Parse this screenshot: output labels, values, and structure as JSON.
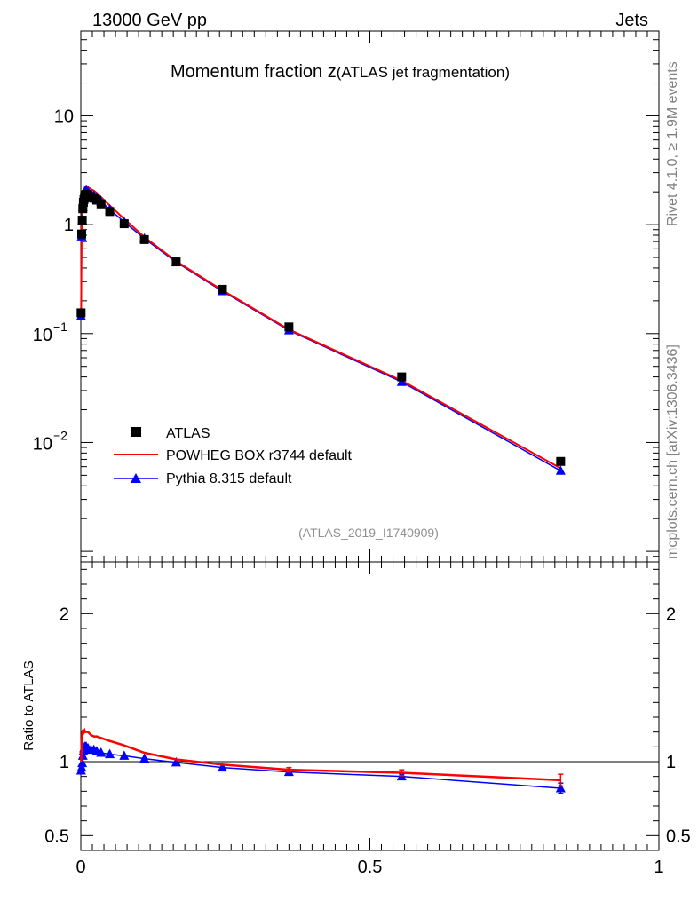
{
  "header": {
    "beam_label": "13000 GeV pp",
    "process_label": "Jets"
  },
  "side_labels": {
    "rivet": "Rivet 4.1.0, ≥ 1.9M events",
    "mcplots": "mcplots.cern.ch [arXiv:1306.3436]"
  },
  "analysis_id": "(ATLAS_2019_I1740909)",
  "colors": {
    "data": "#000000",
    "powheg": "#ff0000",
    "pythia": "#0000ff",
    "axes": "#000000",
    "grey_text": "#808080"
  },
  "chart_data": [
    {
      "type": "scatter",
      "panel": "main",
      "title_main": "Momentum fraction z",
      "title_sub": "(ATLAS jet fragmentation)",
      "yscale": "log",
      "xlim": [
        0,
        1
      ],
      "ylim": [
        0.0008,
        60
      ],
      "y_ticks": [
        {
          "value": 0.01,
          "base": "10",
          "exp": "−2"
        },
        {
          "value": 0.1,
          "base": "10",
          "exp": "−1"
        },
        {
          "value": 1,
          "label": "1"
        },
        {
          "value": 10,
          "label": "10"
        }
      ],
      "legend_position": "lower-left",
      "series": [
        {
          "name": "ATLAS",
          "kind": "data",
          "x": [
            0.0005,
            0.0015,
            0.0025,
            0.0035,
            0.0045,
            0.0055,
            0.0065,
            0.0075,
            0.0085,
            0.0095,
            0.0125,
            0.0175,
            0.0225,
            0.0275,
            0.035,
            0.05,
            0.075,
            0.11,
            0.165,
            0.245,
            0.36,
            0.555,
            0.83
          ],
          "y": [
            0.155,
            0.82,
            1.1,
            1.4,
            1.6,
            1.7,
            1.8,
            1.85,
            1.88,
            1.9,
            1.85,
            1.8,
            1.75,
            1.68,
            1.55,
            1.32,
            1.02,
            0.73,
            0.455,
            0.255,
            0.115,
            0.04,
            0.0067
          ]
        },
        {
          "name": "POWHEG BOX r3744 default",
          "kind": "line",
          "x": [
            0.0005,
            0.0015,
            0.0025,
            0.0035,
            0.0045,
            0.0055,
            0.0065,
            0.0075,
            0.0085,
            0.0095,
            0.0125,
            0.0175,
            0.0225,
            0.0275,
            0.035,
            0.05,
            0.075,
            0.11,
            0.165,
            0.245,
            0.36,
            0.555,
            0.83
          ],
          "y": [
            0.155,
            0.93,
            1.33,
            1.69,
            1.93,
            2.05,
            2.17,
            2.23,
            2.26,
            2.28,
            2.21,
            2.12,
            2.05,
            1.96,
            1.79,
            1.5,
            1.13,
            0.77,
            0.462,
            0.25,
            0.109,
            0.037,
            0.0058
          ]
        },
        {
          "name": "Pythia 8.315 default",
          "kind": "line",
          "x": [
            0.0005,
            0.0015,
            0.0025,
            0.0035,
            0.0045,
            0.0055,
            0.0065,
            0.0075,
            0.0085,
            0.0095,
            0.0125,
            0.0175,
            0.0225,
            0.0275,
            0.035,
            0.05,
            0.075,
            0.11,
            0.165,
            0.245,
            0.36,
            0.555,
            0.83
          ],
          "y": [
            0.145,
            0.78,
            1.1,
            1.45,
            1.7,
            1.85,
            1.97,
            2.03,
            2.06,
            2.07,
            2.0,
            1.92,
            1.86,
            1.78,
            1.63,
            1.38,
            1.06,
            0.745,
            0.452,
            0.245,
            0.107,
            0.036,
            0.0055
          ]
        }
      ]
    },
    {
      "type": "line",
      "panel": "ratio",
      "ylabel": "Ratio to ATLAS",
      "xlim": [
        0,
        1
      ],
      "ylim": [
        0.4,
        2.35
      ],
      "y_ticks": [
        {
          "value": 0.5,
          "label": "0.5"
        },
        {
          "value": 1,
          "label": "1"
        },
        {
          "value": 2,
          "label": "2"
        }
      ],
      "x_ticks": [
        {
          "value": 0,
          "label": "0"
        },
        {
          "value": 0.5,
          "label": "0.5"
        },
        {
          "value": 1,
          "label": "1"
        }
      ],
      "reference_line": 1,
      "series": [
        {
          "name": "POWHEG BOX r3744 default",
          "x": [
            0.0005,
            0.0015,
            0.0025,
            0.0035,
            0.0045,
            0.0055,
            0.0065,
            0.0075,
            0.0085,
            0.0095,
            0.0125,
            0.0175,
            0.0225,
            0.0275,
            0.035,
            0.05,
            0.075,
            0.11,
            0.165,
            0.245,
            0.36,
            0.555,
            0.83
          ],
          "y": [
            1.0,
            1.13,
            1.2,
            1.21,
            1.21,
            1.2,
            1.21,
            1.2,
            1.2,
            1.2,
            1.2,
            1.18,
            1.17,
            1.17,
            1.16,
            1.14,
            1.11,
            1.06,
            1.015,
            0.98,
            0.945,
            0.925,
            0.875
          ],
          "yerr": [
            0.01,
            0.01,
            0.01,
            0.01,
            0.01,
            0.01,
            0.01,
            0.01,
            0.01,
            0.01,
            0.01,
            0.01,
            0.01,
            0.01,
            0.01,
            0.01,
            0.01,
            0.01,
            0.01,
            0.01,
            0.015,
            0.02,
            0.04
          ]
        },
        {
          "name": "Pythia 8.315 default",
          "x": [
            0.0005,
            0.0015,
            0.0025,
            0.0035,
            0.0045,
            0.0055,
            0.0065,
            0.0075,
            0.0085,
            0.0095,
            0.0125,
            0.0175,
            0.0225,
            0.0275,
            0.035,
            0.05,
            0.075,
            0.11,
            0.165,
            0.245,
            0.36,
            0.555,
            0.83
          ],
          "y": [
            0.94,
            0.96,
            0.99,
            1.04,
            1.07,
            1.09,
            1.1,
            1.1,
            1.1,
            1.1,
            1.09,
            1.08,
            1.08,
            1.07,
            1.06,
            1.05,
            1.04,
            1.02,
            0.995,
            0.96,
            0.93,
            0.9,
            0.82
          ],
          "yerr": [
            0.01,
            0.01,
            0.01,
            0.01,
            0.01,
            0.01,
            0.01,
            0.01,
            0.01,
            0.01,
            0.01,
            0.01,
            0.01,
            0.01,
            0.01,
            0.01,
            0.01,
            0.01,
            0.01,
            0.01,
            0.012,
            0.015,
            0.035
          ]
        }
      ]
    }
  ]
}
